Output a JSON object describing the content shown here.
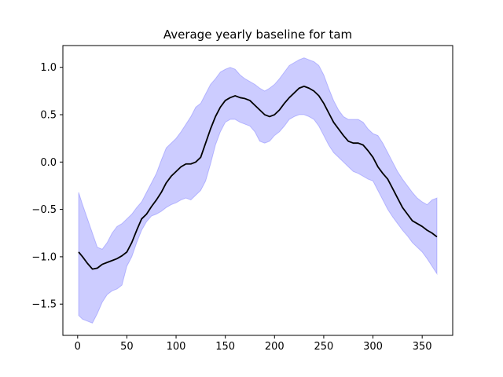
{
  "chart_data": {
    "type": "line",
    "title": "Average yearly baseline for tam",
    "xlabel": "",
    "ylabel": "",
    "xlim": [
      -15,
      381
    ],
    "ylim": [
      -1.83,
      1.23
    ],
    "xticks": [
      0,
      50,
      100,
      150,
      200,
      250,
      300,
      350
    ],
    "xtick_labels": [
      "0",
      "50",
      "100",
      "150",
      "200",
      "250",
      "300",
      "350"
    ],
    "yticks": [
      1.0,
      0.5,
      0.0,
      -0.5,
      -1.0,
      -1.5
    ],
    "ytick_labels": [
      "1.0",
      "0.5",
      "0.0",
      "−0.5",
      "−1.0",
      "−1.5"
    ],
    "grid": false,
    "legend": "none",
    "colors": {
      "line": "#000000",
      "band_fill": "#0000ff",
      "band_opacity": 0.2,
      "axes": "#000000"
    },
    "series": [
      {
        "x": [
          1,
          5,
          10,
          15,
          20,
          25,
          30,
          35,
          40,
          45,
          50,
          55,
          60,
          65,
          70,
          75,
          80,
          85,
          90,
          95,
          100,
          105,
          110,
          115,
          120,
          125,
          130,
          135,
          140,
          145,
          150,
          155,
          160,
          165,
          170,
          175,
          180,
          185,
          190,
          195,
          200,
          205,
          210,
          215,
          220,
          225,
          230,
          235,
          240,
          245,
          250,
          255,
          260,
          265,
          270,
          275,
          280,
          285,
          290,
          295,
          300,
          305,
          310,
          315,
          320,
          325,
          330,
          335,
          340,
          345,
          350,
          355,
          360,
          365
        ],
        "y": [
          -0.95,
          -1.0,
          -1.07,
          -1.13,
          -1.12,
          -1.08,
          -1.06,
          -1.04,
          -1.02,
          -0.99,
          -0.95,
          -0.85,
          -0.72,
          -0.6,
          -0.55,
          -0.47,
          -0.4,
          -0.32,
          -0.22,
          -0.15,
          -0.1,
          -0.05,
          -0.02,
          -0.02,
          0.0,
          0.05,
          0.2,
          0.35,
          0.48,
          0.58,
          0.65,
          0.68,
          0.7,
          0.68,
          0.67,
          0.65,
          0.6,
          0.55,
          0.5,
          0.48,
          0.5,
          0.55,
          0.62,
          0.68,
          0.73,
          0.78,
          0.8,
          0.78,
          0.75,
          0.7,
          0.62,
          0.52,
          0.42,
          0.35,
          0.28,
          0.22,
          0.2,
          0.2,
          0.18,
          0.12,
          0.05,
          -0.05,
          -0.12,
          -0.18,
          -0.28,
          -0.38,
          -0.48,
          -0.55,
          -0.62,
          -0.65,
          -0.68,
          -0.72,
          -0.75,
          -0.79
        ],
        "lower": [
          -1.62,
          -1.66,
          -1.68,
          -1.7,
          -1.6,
          -1.48,
          -1.4,
          -1.36,
          -1.34,
          -1.3,
          -1.1,
          -1.0,
          -0.85,
          -0.72,
          -0.63,
          -0.57,
          -0.55,
          -0.52,
          -0.48,
          -0.45,
          -0.43,
          -0.4,
          -0.38,
          -0.4,
          -0.35,
          -0.3,
          -0.2,
          -0.02,
          0.18,
          0.32,
          0.42,
          0.45,
          0.45,
          0.42,
          0.4,
          0.38,
          0.32,
          0.22,
          0.2,
          0.22,
          0.28,
          0.32,
          0.38,
          0.45,
          0.48,
          0.5,
          0.5,
          0.48,
          0.45,
          0.38,
          0.28,
          0.18,
          0.1,
          0.05,
          0.0,
          -0.05,
          -0.1,
          -0.12,
          -0.15,
          -0.18,
          -0.2,
          -0.3,
          -0.4,
          -0.5,
          -0.58,
          -0.65,
          -0.72,
          -0.78,
          -0.85,
          -0.9,
          -0.95,
          -1.02,
          -1.1,
          -1.18
        ],
        "upper": [
          -0.32,
          -0.45,
          -0.6,
          -0.75,
          -0.9,
          -0.92,
          -0.85,
          -0.75,
          -0.68,
          -0.65,
          -0.6,
          -0.55,
          -0.48,
          -0.42,
          -0.32,
          -0.22,
          -0.12,
          0.02,
          0.15,
          0.2,
          0.25,
          0.32,
          0.4,
          0.48,
          0.58,
          0.62,
          0.72,
          0.82,
          0.88,
          0.95,
          0.98,
          1.0,
          0.98,
          0.92,
          0.88,
          0.85,
          0.82,
          0.78,
          0.75,
          0.78,
          0.82,
          0.88,
          0.95,
          1.02,
          1.05,
          1.08,
          1.1,
          1.08,
          1.06,
          1.02,
          0.92,
          0.78,
          0.65,
          0.55,
          0.48,
          0.45,
          0.45,
          0.45,
          0.42,
          0.35,
          0.3,
          0.28,
          0.2,
          0.1,
          0.0,
          -0.1,
          -0.18,
          -0.25,
          -0.32,
          -0.38,
          -0.42,
          -0.45,
          -0.4,
          -0.38
        ]
      }
    ]
  }
}
